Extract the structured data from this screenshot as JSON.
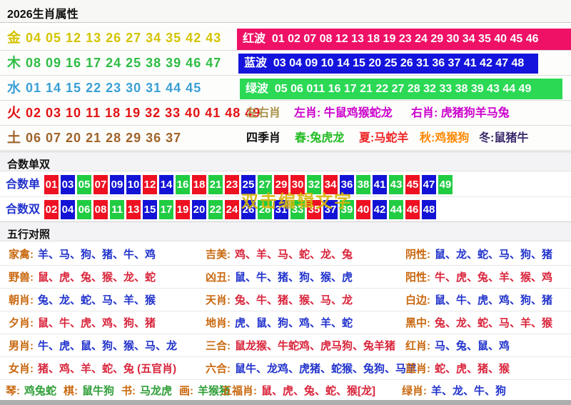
{
  "title": "2026生肖属性",
  "palette": {
    "gold": "#d4c400",
    "wood_green": "#2fbc45",
    "water_blue": "#3aa0d6",
    "fire_red": "#e31212",
    "earth_brown": "#a0632a",
    "red_wave_bg": "#ee1166",
    "blue_wave_bg": "#1414dd",
    "green_wave_bg": "#2bd955",
    "ball_red": "#ee1122",
    "ball_blue": "#1313d6",
    "ball_green": "#21cc42",
    "hesum_label_blue": "#2233cc",
    "label_orange": "#c9680f",
    "value_blue": "#2233cc",
    "value_red": "#d9243b",
    "value_green": "#2f9e38",
    "magenta": "#cc00cc",
    "khaki": "#ab954d",
    "watermark_yellow": "#d6b70a",
    "season_spring": "#22bb22",
    "season_summer": "#ee2222",
    "season_autumn": "#ff8800",
    "season_winter": "#3a2a6a"
  },
  "elements": [
    {
      "name": "金",
      "numbers": "04 05 12 13 26 27 34 35 42 43",
      "color_key": "gold"
    },
    {
      "name": "木",
      "numbers": "08 09 16 17 24 25 38 39 46 47",
      "color_key": "wood_green"
    },
    {
      "name": "水",
      "numbers": "01 14 15 22 23 30 31 44 45",
      "color_key": "water_blue"
    },
    {
      "name": "火",
      "numbers": "02 03 10 11 18 19 32 33 40 41 48 49",
      "color_key": "fire_red"
    },
    {
      "name": "土",
      "numbers": "06 07 20 21 28 29 36 37",
      "color_key": "earth_brown"
    }
  ],
  "waves": [
    {
      "label": "红波",
      "numbers": "01 02 07 08 12 13 18 19 23 24 29 30 34 35 40 45 46",
      "bg_key": "red_wave_bg"
    },
    {
      "label": "蓝波",
      "numbers": "03 04 09 10 14 15 20 25 26 31 36 37 41 42 47 48",
      "bg_key": "blue_wave_bg"
    },
    {
      "label": "绿波",
      "numbers": "05 06 011 16 17 21 22 27 28 32 33 38 39 43 44 49",
      "bg_key": "green_wave_bg"
    }
  ],
  "zuoyouxiao": {
    "label": "左右肖",
    "left": "左肖: 牛鼠鸡猴蛇龙",
    "right": "右肖: 虎猪狗羊马兔"
  },
  "sijixiao": {
    "label": "四季肖",
    "seasons": [
      {
        "text": "春:兔虎龙",
        "color_key": "season_spring"
      },
      {
        "text": "夏:马蛇羊",
        "color_key": "season_summer"
      },
      {
        "text": "秋:鸡猴狗",
        "color_key": "season_autumn"
      },
      {
        "text": "冬:鼠猪牛",
        "color_key": "season_winter"
      }
    ]
  },
  "hesum": {
    "section_title": "合数单双",
    "watermark": "双击编辑文字",
    "rows": [
      {
        "label": "合数单",
        "balls": [
          [
            "01",
            "r"
          ],
          [
            "03",
            "b"
          ],
          [
            "05",
            "g"
          ],
          [
            "07",
            "r"
          ],
          [
            "09",
            "b"
          ],
          [
            "10",
            "b"
          ],
          [
            "12",
            "r"
          ],
          [
            "14",
            "b"
          ],
          [
            "16",
            "g"
          ],
          [
            "18",
            "r"
          ],
          [
            "21",
            "g"
          ],
          [
            "23",
            "r"
          ],
          [
            "25",
            "b"
          ],
          [
            "27",
            "g"
          ],
          [
            "29",
            "r"
          ],
          [
            "30",
            "r"
          ],
          [
            "32",
            "g"
          ],
          [
            "34",
            "r"
          ],
          [
            "36",
            "b"
          ],
          [
            "38",
            "g"
          ],
          [
            "41",
            "b"
          ],
          [
            "43",
            "g"
          ],
          [
            "45",
            "r"
          ],
          [
            "47",
            "b"
          ],
          [
            "49",
            "g"
          ]
        ]
      },
      {
        "label": "合数双",
        "balls": [
          [
            "02",
            "r"
          ],
          [
            "04",
            "b"
          ],
          [
            "06",
            "g"
          ],
          [
            "08",
            "r"
          ],
          [
            "11",
            "g"
          ],
          [
            "13",
            "r"
          ],
          [
            "15",
            "b"
          ],
          [
            "17",
            "g"
          ],
          [
            "19",
            "r"
          ],
          [
            "20",
            "b"
          ],
          [
            "22",
            "g"
          ],
          [
            "24",
            "r"
          ],
          [
            "26",
            "b"
          ],
          [
            "28",
            "g"
          ],
          [
            "31",
            "b"
          ],
          [
            "33",
            "g"
          ],
          [
            "35",
            "r"
          ],
          [
            "37",
            "b"
          ],
          [
            "39",
            "g"
          ],
          [
            "40",
            "r"
          ],
          [
            "42",
            "b"
          ],
          [
            "44",
            "g"
          ],
          [
            "46",
            "r"
          ],
          [
            "48",
            "b"
          ]
        ]
      }
    ]
  },
  "wuxing": {
    "section_title": "五行对照",
    "rows": [
      [
        {
          "label": "家禽:",
          "value": "羊、马、狗、猪、牛、鸡",
          "vc": "value_blue"
        },
        {
          "label": "吉美:",
          "value": "鸡、羊、马、蛇、龙、兔",
          "vc": "value_red"
        },
        {
          "label": "阴性:",
          "value": "鼠、龙、蛇、马、狗、猪",
          "vc": "value_blue"
        }
      ],
      [
        {
          "label": "野兽:",
          "value": "鼠、虎、兔、猴、龙、蛇",
          "vc": "value_red"
        },
        {
          "label": "凶丑:",
          "value": "鼠、牛、猪、狗、猴、虎",
          "vc": "value_blue"
        },
        {
          "label": "阳性:",
          "value": "牛、虎、兔、羊、猴、鸡",
          "vc": "value_red"
        }
      ],
      [
        {
          "label": "朝肖:",
          "value": "兔、龙、蛇、马、羊、猴",
          "vc": "value_blue"
        },
        {
          "label": "天肖:",
          "value": "兔、牛、猪、猴、马、龙",
          "vc": "value_red"
        },
        {
          "label": "白边:",
          "value": "鼠、牛、虎、鸡、狗、猪",
          "vc": "value_blue"
        }
      ],
      [
        {
          "label": "夕肖:",
          "value": "鼠、牛、虎、鸡、狗、猪",
          "vc": "value_red"
        },
        {
          "label": "地肖:",
          "value": "虎、鼠、狗、鸡、羊、蛇",
          "vc": "value_blue"
        },
        {
          "label": "黑中:",
          "value": "兔、龙、蛇、马、羊、猴",
          "vc": "value_red"
        }
      ],
      [
        {
          "label": "男肖:",
          "value": "牛、虎、鼠、狗、猴、马、龙",
          "vc": "value_blue"
        },
        {
          "label": "三合:",
          "value": "鼠龙猴、牛蛇鸡、虎马狗、兔羊猪",
          "vc": "value_red"
        },
        {
          "label": "红肖:",
          "value": "马、兔、鼠、鸡",
          "vc": "value_blue"
        }
      ],
      [
        {
          "label": "女肖:",
          "value": "猪、鸡、羊、蛇、兔 (五官肖)",
          "vc": "value_red"
        },
        {
          "label": "六合:",
          "value": "鼠牛、龙鸡、虎猪、蛇猴、兔狗、马羊",
          "vc": "value_blue"
        },
        {
          "label": "蓝肖:",
          "value": "蛇、虎、猪、猴",
          "vc": "value_red"
        }
      ]
    ],
    "arts_row": {
      "pairs": [
        {
          "label": "琴:",
          "value": "鸡兔蛇"
        },
        {
          "label": "棋:",
          "value": "鼠牛狗"
        },
        {
          "label": "书:",
          "value": "马龙虎"
        },
        {
          "label": "画:",
          "value": "羊猴猪"
        }
      ],
      "mid": {
        "label": "五福肖:",
        "value": "鼠、虎、兔、蛇、猴[龙]",
        "vc": "value_red"
      },
      "right": {
        "label": "绿肖:",
        "value": "羊、龙、牛、狗",
        "vc": "value_blue"
      }
    }
  }
}
